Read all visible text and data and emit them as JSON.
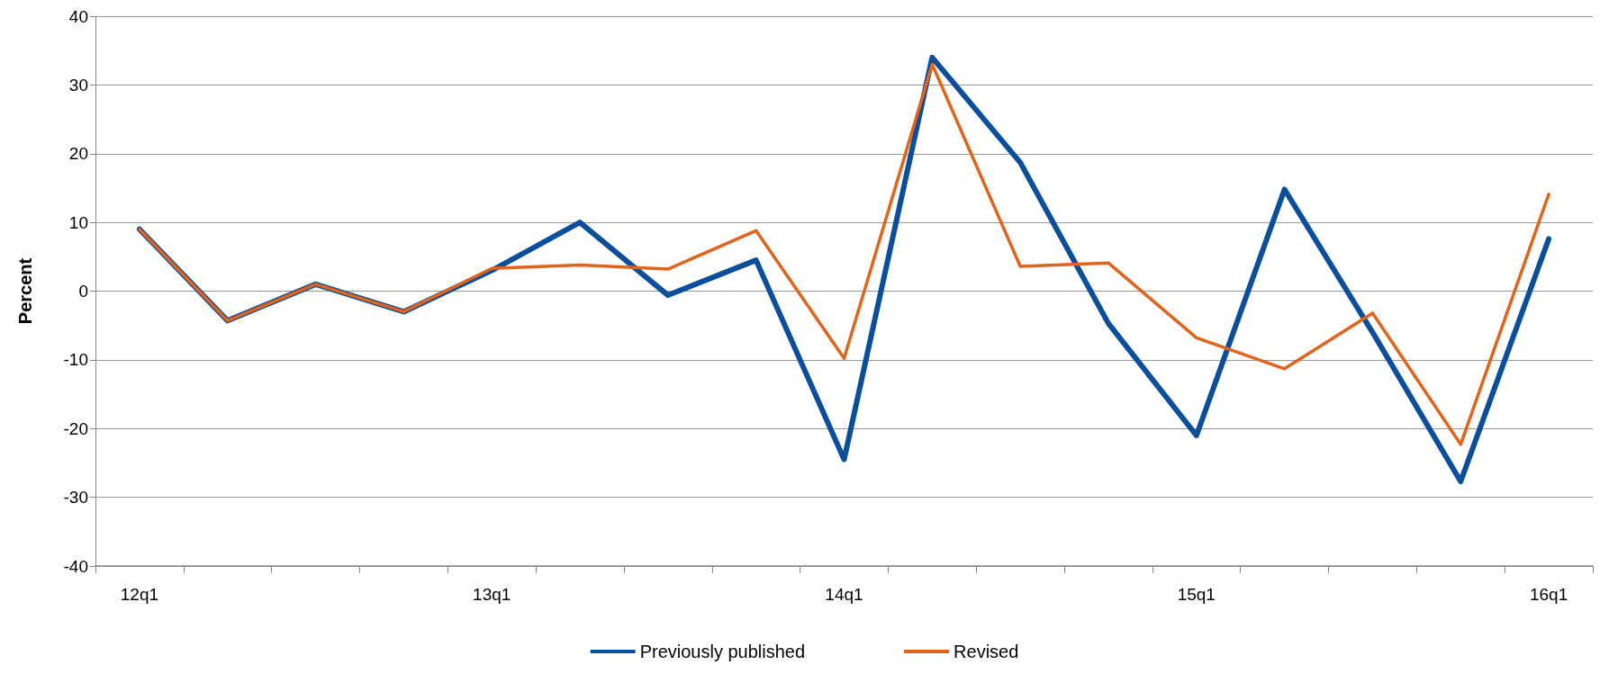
{
  "chart_data": {
    "type": "line",
    "ylabel": "Percent",
    "categories": [
      "12q1",
      null,
      null,
      null,
      "13q1",
      null,
      null,
      null,
      "14q1",
      null,
      null,
      null,
      "15q1",
      null,
      null,
      null,
      "16q1"
    ],
    "series": [
      {
        "name": "Previously published",
        "color": "#0b4f9c",
        "values": [
          9,
          -4.3,
          1,
          -3,
          3,
          10,
          -0.6,
          4.5,
          -24.5,
          34,
          18.7,
          -4.7,
          -21,
          14.8,
          -6,
          -27.7,
          7.6
        ]
      },
      {
        "name": "Revised",
        "color": "#e0641b",
        "values": [
          9,
          -4.3,
          1,
          -3,
          3.3,
          3.8,
          3.2,
          8.8,
          -9.8,
          33,
          3.6,
          4.1,
          -6.8,
          -11.3,
          -3.2,
          -22.3,
          14.1
        ]
      }
    ],
    "ylim": [
      -40,
      40
    ],
    "yticks": [
      -40,
      -30,
      -20,
      -10,
      0,
      10,
      20,
      30,
      40
    ],
    "grid": "y",
    "legend": "bottom",
    "marker": "none",
    "line_style": "solid"
  }
}
